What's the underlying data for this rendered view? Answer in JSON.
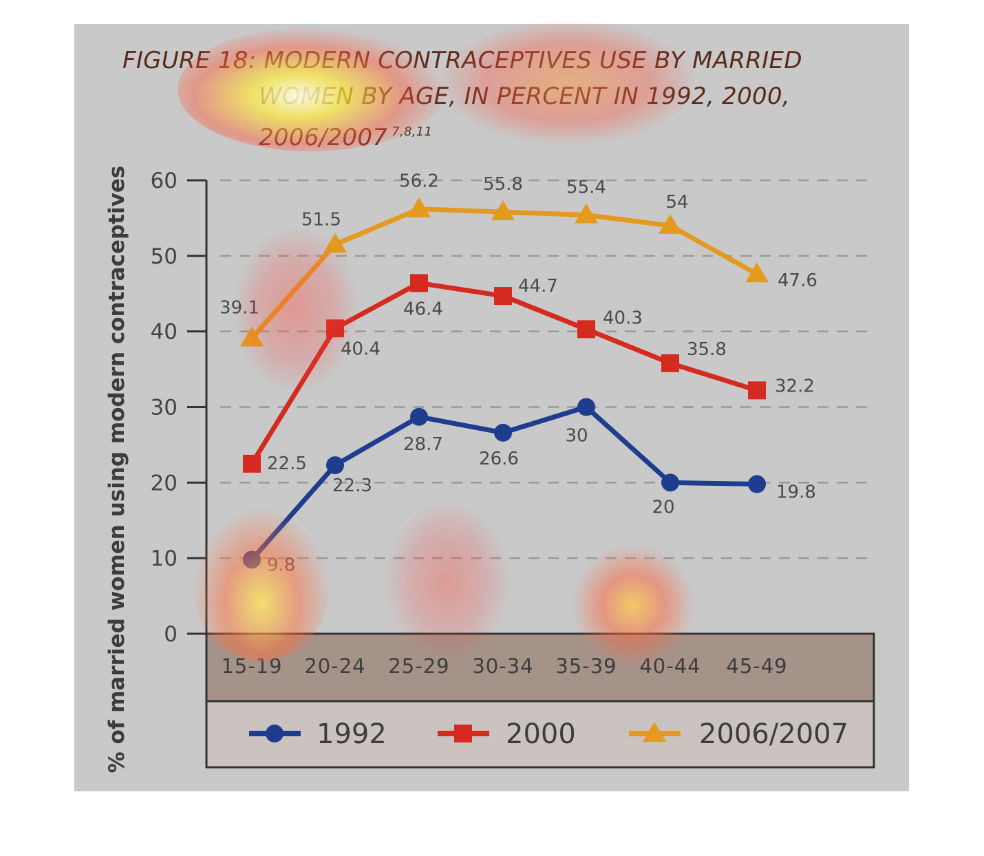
{
  "title": {
    "line1": "FIGURE 18: MODERN CONTRACEPTIVES USE BY MARRIED",
    "line2": "WOMEN BY AGE, IN PERCENT IN 1992, 2000,",
    "line3": "2006/2007",
    "refs": "7,8,11"
  },
  "colors": {
    "s1992": "#1f3d8f",
    "s2000": "#d42a1f",
    "s2006": "#e39a1e",
    "panel": "#c9c9c9",
    "axis_box": "#a5938a",
    "legend_box": "#cbc3c0"
  },
  "chart_data": {
    "type": "line",
    "title": "",
    "xlabel": "",
    "ylabel": "% of married women using modern contraceptives",
    "ylim": [
      0,
      60
    ],
    "yticks": [
      0,
      10,
      20,
      30,
      40,
      50,
      60
    ],
    "grid": "horizontal dashed",
    "legend_position": "bottom",
    "categories": [
      "15-19",
      "20-24",
      "25-29",
      "30-34",
      "35-39",
      "40-44",
      "45-49"
    ],
    "series": [
      {
        "name": "1992",
        "marker": "circle",
        "values": [
          9.8,
          22.3,
          28.7,
          26.6,
          30,
          20,
          19.8
        ]
      },
      {
        "name": "2000",
        "marker": "square",
        "values": [
          22.5,
          40.4,
          46.4,
          44.7,
          40.3,
          35.8,
          32.2
        ]
      },
      {
        "name": "2006/2007",
        "marker": "triangle",
        "values": [
          39.1,
          51.5,
          56.2,
          55.8,
          55.4,
          54,
          47.6
        ]
      }
    ]
  }
}
